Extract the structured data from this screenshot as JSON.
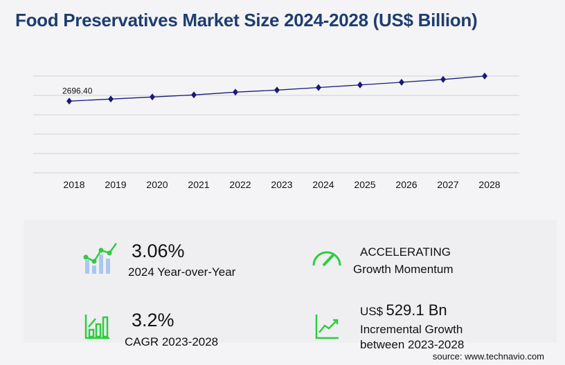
{
  "title": "Food Preservatives Market Size 2024-2028 (US$ Billion)",
  "chart_data": {
    "type": "line",
    "categories": [
      "2018",
      "2019",
      "2020",
      "2021",
      "2022",
      "2023",
      "2024",
      "2025",
      "2026",
      "2027",
      "2028"
    ],
    "values": [
      2696.4,
      2774,
      2852,
      2930,
      3034,
      3112,
      3207,
      3305,
      3407,
      3512,
      3641
    ],
    "data_labels": {
      "2018": "2696.40"
    },
    "ylim": [
      0,
      3640
    ],
    "grid": true,
    "line_color": "#1a1a7a",
    "title": "",
    "xlabel": "",
    "ylabel": ""
  },
  "stats": {
    "yoy": {
      "value": "3.06%",
      "label": "2024 Year-over-Year"
    },
    "momentum": {
      "value": "ACCELERATING",
      "label": "Growth Momentum"
    },
    "cagr": {
      "value": "3.2%",
      "label": "CAGR 2023-2028"
    },
    "incremental": {
      "prefix": "US$",
      "value": "529.1 Bn",
      "label1": "Incremental Growth",
      "label2": "between 2023-2028"
    }
  },
  "source": "source: www.technavio.com",
  "colors": {
    "accent_green": "#2ecc40",
    "bar_blue": "#a9c8f0",
    "title": "#1f3d6e"
  }
}
